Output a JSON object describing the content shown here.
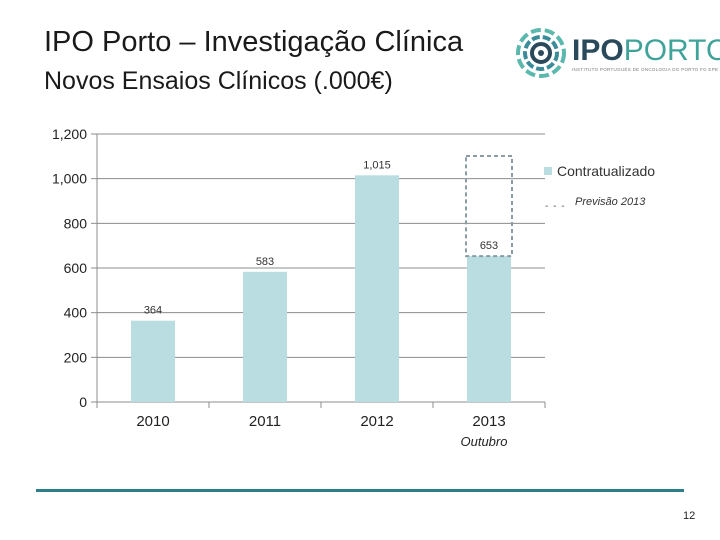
{
  "header": {
    "title": "IPO Porto – Investigação Clínica",
    "subtitle": "Novos Ensaios Clínicos (.000€)"
  },
  "logo": {
    "text_ipo": "IPO",
    "text_porto": "PORTO",
    "tagline": "INSTITUTO PORTUGUÊS DE ONCOLOGIA DO PORTO FG EPE",
    "icon": "ipo-porto-circular-logo"
  },
  "chart_data": {
    "type": "bar",
    "categories": [
      "2010",
      "2011",
      "2012",
      "2013"
    ],
    "series": [
      {
        "name": "Contratualizado",
        "values": [
          364,
          583,
          1015,
          653
        ],
        "color": "#b9dde1"
      }
    ],
    "forecast": {
      "name": "Previsão 2013",
      "category": "2013",
      "style": "dashed-outline",
      "color": "#8a9ca4"
    },
    "data_labels": [
      "364",
      "583",
      "1,015",
      "653"
    ],
    "yticks": [
      0,
      200,
      400,
      600,
      800,
      1000,
      1200
    ],
    "ytick_labels": [
      "0",
      "200",
      "400",
      "600",
      "800",
      "1,000",
      "1,200"
    ],
    "ylim": [
      0,
      1200
    ],
    "grid": true,
    "legend": [
      "Contratualizado",
      "Previsão 2013"
    ],
    "legend_position": "right",
    "annotation": {
      "category": "2013",
      "text": "Outubro"
    }
  },
  "legend": {
    "item1": "Contratualizado",
    "item2_dash": "- - -",
    "item2": "Previsão 2013"
  },
  "footer": {
    "page_number": "12"
  }
}
